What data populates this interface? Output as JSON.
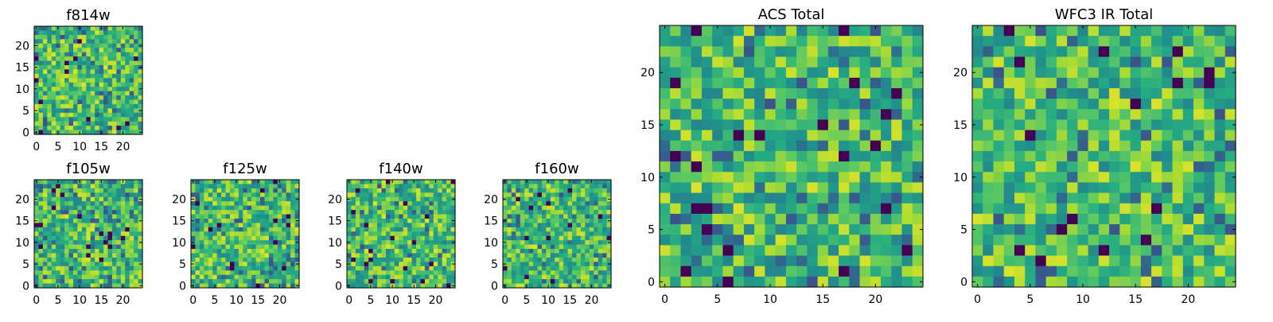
{
  "chart_data": [
    {
      "type": "heatmap",
      "title": "f814w",
      "grid_size": 25,
      "colormap": "viridis",
      "xticks": [
        "0",
        "5",
        "10",
        "15",
        "20"
      ],
      "yticks": [
        "0",
        "5",
        "10",
        "15",
        "20"
      ],
      "seed": 11
    },
    {
      "type": "heatmap",
      "title": "f105w",
      "grid_size": 25,
      "colormap": "viridis",
      "xticks": [
        "0",
        "5",
        "10",
        "15",
        "20"
      ],
      "yticks": [
        "0",
        "5",
        "10",
        "15",
        "20"
      ],
      "seed": 23
    },
    {
      "type": "heatmap",
      "title": "f125w",
      "grid_size": 25,
      "colormap": "viridis",
      "xticks": [
        "0",
        "5",
        "10",
        "15",
        "20"
      ],
      "yticks": [
        "0",
        "5",
        "10",
        "15",
        "20"
      ],
      "seed": 37
    },
    {
      "type": "heatmap",
      "title": "f140w",
      "grid_size": 25,
      "colormap": "viridis",
      "xticks": [
        "0",
        "5",
        "10",
        "15",
        "20"
      ],
      "yticks": [
        "0",
        "5",
        "10",
        "15",
        "20"
      ],
      "seed": 41
    },
    {
      "type": "heatmap",
      "title": "f160w",
      "grid_size": 25,
      "colormap": "viridis",
      "xticks": [
        "0",
        "5",
        "10",
        "15",
        "20"
      ],
      "yticks": [
        "0",
        "5",
        "10",
        "15",
        "20"
      ],
      "seed": 53
    },
    {
      "type": "heatmap",
      "title": "ACS Total",
      "grid_size": 25,
      "colormap": "viridis",
      "xticks": [
        "0",
        "5",
        "10",
        "15",
        "20"
      ],
      "yticks": [
        "0",
        "5",
        "10",
        "15",
        "20"
      ],
      "seed": 67
    },
    {
      "type": "heatmap",
      "title": "WFC3 IR Total",
      "grid_size": 25,
      "colormap": "viridis",
      "xticks": [
        "0",
        "5",
        "10",
        "15",
        "20"
      ],
      "yticks": [
        "0",
        "5",
        "10",
        "15",
        "20"
      ],
      "seed": 79
    }
  ]
}
